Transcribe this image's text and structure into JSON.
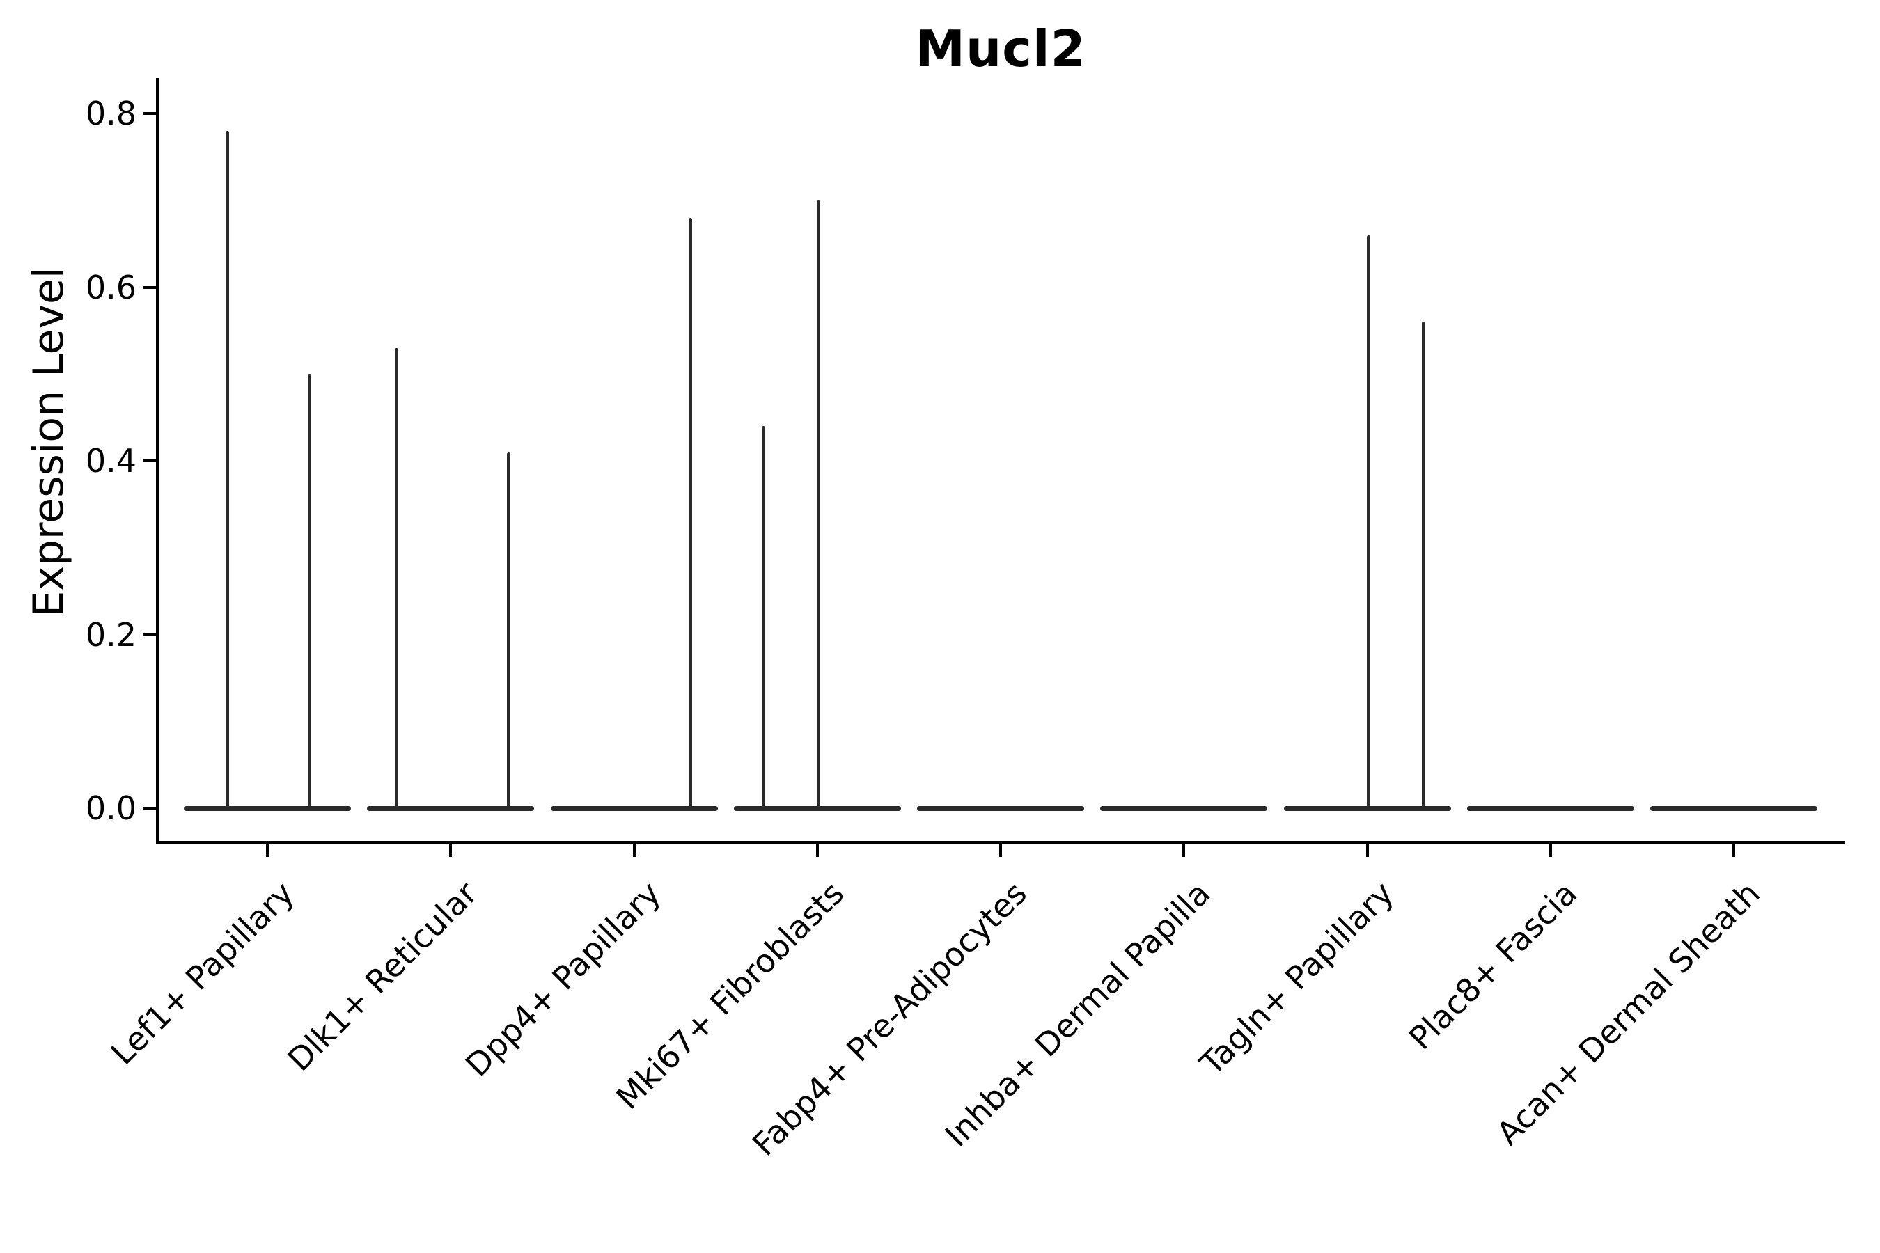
{
  "chart_data": {
    "type": "violin",
    "title": "Mucl2",
    "ylabel": "Expression Level",
    "xlabel": "",
    "ylim": [
      0,
      0.84
    ],
    "grid": false,
    "legend": false,
    "yticks": [
      {
        "label": "0.8",
        "value": 0.8
      },
      {
        "label": "0.6",
        "value": 0.6
      },
      {
        "label": "0.4",
        "value": 0.4
      },
      {
        "label": "0.2",
        "value": 0.2
      },
      {
        "label": "0.0",
        "value": 0.0
      }
    ],
    "categories": [
      "Lef1+ Papillary",
      "Dlk1+ Reticular",
      "Dpp4+ Papillary",
      "Mki67+ Fibroblasts",
      "Fabp4+ Pre-Adipocytes",
      "Inhba+ Dermal Papilla",
      "Tagln+ Papillary",
      "Plac8+ Fascia",
      "Acan+ Dermal Sheath"
    ],
    "violins": [
      {
        "category": "Lef1+ Papillary",
        "spikes": [
          {
            "offset": -58,
            "value": 0.78
          },
          {
            "offset": 60,
            "value": 0.5
          }
        ]
      },
      {
        "category": "Dlk1+ Reticular",
        "spikes": [
          {
            "offset": -78,
            "value": 0.53
          },
          {
            "offset": 83,
            "value": 0.41
          }
        ]
      },
      {
        "category": "Dpp4+ Papillary",
        "spikes": [
          {
            "offset": 80,
            "value": 0.68
          }
        ]
      },
      {
        "category": "Mki67+ Fibroblasts",
        "spikes": [
          {
            "offset": -78,
            "value": 0.44
          },
          {
            "offset": 1,
            "value": 0.7
          }
        ]
      },
      {
        "category": "Fabp4+ Pre-Adipocytes",
        "spikes": []
      },
      {
        "category": "Inhba+ Dermal Papilla",
        "spikes": []
      },
      {
        "category": "Tagln+ Papillary",
        "spikes": [
          {
            "offset": 1,
            "value": 0.66
          },
          {
            "offset": 80,
            "value": 0.56
          }
        ]
      },
      {
        "category": "Plac8+ Fascia",
        "spikes": []
      },
      {
        "category": "Acan+ Dermal Sheath",
        "spikes": []
      }
    ],
    "colors": {
      "violin": "#2a2a2a",
      "axis": "#000000",
      "text": "#000000",
      "background": "#ffffff"
    }
  }
}
